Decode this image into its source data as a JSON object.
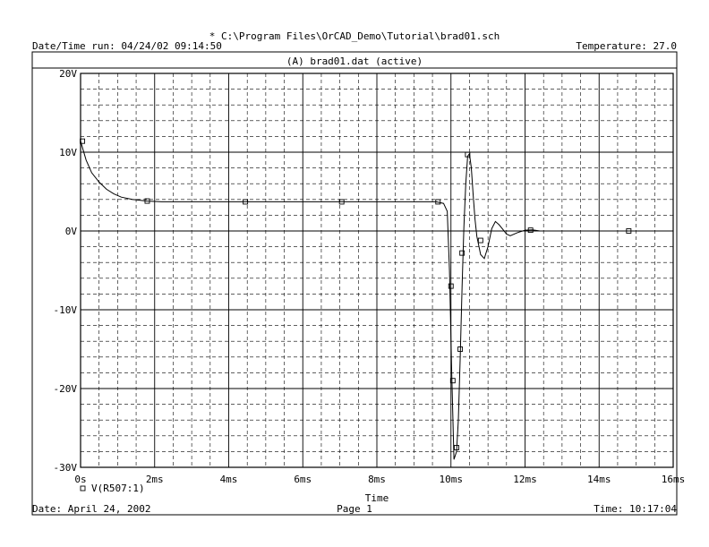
{
  "header": {
    "schematic_path": "* C:\\Program Files\\OrCAD_Demo\\Tutorial\\brad01.sch",
    "run_label": "Date/Time run: 04/24/02 09:14:50",
    "temperature_label": "Temperature: 27.0"
  },
  "panel": {
    "section_title": "(A) brad01.dat (active)"
  },
  "footer": {
    "date_label": "Date: April 24, 2002",
    "page_label": "Page 1",
    "time_label": "Time: 10:17:04"
  },
  "colors": {
    "ink": "#000000",
    "paper": "#ffffff"
  },
  "chart_data": {
    "type": "line",
    "title": "(A) brad01.dat (active)",
    "xlabel": "Time",
    "ylabel": "",
    "x_unit": "ms",
    "y_unit": "V",
    "xlim": [
      0,
      16
    ],
    "ylim": [
      -30,
      20
    ],
    "x_ticks": [
      0,
      2,
      4,
      6,
      8,
      10,
      12,
      14,
      16
    ],
    "x_tick_labels": [
      "0s",
      "2ms",
      "4ms",
      "6ms",
      "8ms",
      "10ms",
      "12ms",
      "14ms",
      "16ms"
    ],
    "y_ticks": [
      20,
      10,
      0,
      -10,
      -20,
      -30
    ],
    "y_tick_labels": [
      "20V",
      "10V",
      "0V",
      "-10V",
      "-20V",
      "-30V"
    ],
    "grid": true,
    "legend": "bottom-left",
    "series": [
      {
        "name": "V(R507:1)",
        "x": [
          0,
          0.15,
          0.3,
          0.5,
          0.7,
          0.9,
          1.1,
          1.4,
          1.8,
          2.2,
          2.6,
          3.0,
          4.0,
          5.0,
          6.0,
          7.0,
          8.0,
          9.0,
          9.6,
          9.8,
          9.9,
          9.96,
          10.02,
          10.08,
          10.15,
          10.2,
          10.25,
          10.3,
          10.35,
          10.4,
          10.45,
          10.5,
          10.55,
          10.6,
          10.65,
          10.7,
          10.8,
          10.9,
          11.0,
          11.1,
          11.2,
          11.3,
          11.4,
          11.5,
          11.6,
          11.8,
          12.0,
          12.2,
          12.4,
          12.6
        ],
        "y": [
          11.4,
          9.0,
          7.4,
          6.2,
          5.3,
          4.7,
          4.3,
          4.0,
          3.8,
          3.7,
          3.7,
          3.7,
          3.7,
          3.7,
          3.7,
          3.7,
          3.7,
          3.7,
          3.7,
          3.5,
          2.5,
          -5.0,
          -18.0,
          -29.0,
          -28.0,
          -24.0,
          -16.0,
          -7.0,
          0.5,
          6.0,
          9.5,
          9.8,
          8.0,
          4.5,
          1.5,
          -0.7,
          -3.0,
          -3.5,
          -2.0,
          0.3,
          1.2,
          0.8,
          0.2,
          -0.4,
          -0.6,
          -0.2,
          0.1,
          0.15,
          0.0,
          0.0
        ],
        "marker_x": [
          0.05,
          1.8,
          4.45,
          7.05,
          9.65,
          10.0,
          10.05,
          10.15,
          10.25,
          10.3,
          10.45,
          10.8,
          12.15,
          14.8
        ],
        "marker_y": [
          11.4,
          3.8,
          3.7,
          3.7,
          3.7,
          -7.0,
          -19.0,
          -27.5,
          -15.0,
          -2.8,
          9.7,
          -1.2,
          0.1,
          0.0
        ]
      }
    ]
  }
}
